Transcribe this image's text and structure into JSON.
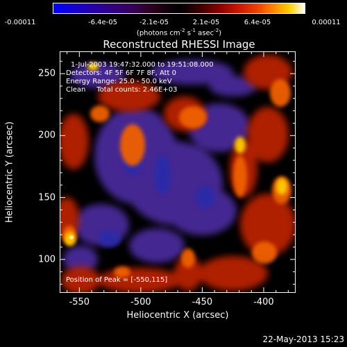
{
  "colorbar": {
    "tick_labels": [
      "-0.00011",
      "-6.4e-05",
      "-2.1e-05",
      "2.1e-05",
      "6.4e-05",
      "0.00011"
    ],
    "units_prefix": "(photons cm",
    "units_exp1": "-2",
    "units_mid1": " s",
    "units_exp2": "-1",
    "units_mid2": " asec",
    "units_exp3": "-2",
    "units_suffix": ")"
  },
  "title": "Reconstructed RHESSI Image",
  "info": {
    "time_range": "1-Jul-2003 19:47:32.000 to 19:51:08.000",
    "detectors": "Detectors: 4F 5F 6F 7F 8F, Att 0",
    "energy": "Energy Range: 25.0 - 50.0 keV",
    "clean": "Clean     Total counts: 2.46E+03",
    "peak": "Position of Peak = [-550,115]"
  },
  "x_axis": {
    "label": "Heliocentric X (arcsec)",
    "tick_labels": [
      "-550",
      "-500",
      "-450",
      "-400"
    ],
    "tick_values": [
      -550,
      -500,
      -450,
      -400
    ],
    "range": [
      -566,
      -374
    ]
  },
  "y_axis": {
    "label": "Heliocentric Y (arcsec)",
    "tick_labels": [
      "100",
      "150",
      "200",
      "250"
    ],
    "tick_values": [
      100,
      150,
      200,
      250
    ],
    "range": [
      73,
      268
    ]
  },
  "timestamp": "22-May-2013 15:23",
  "colors": {
    "background": "#000000",
    "axis": "#ffffff",
    "text": "#ffffff"
  }
}
